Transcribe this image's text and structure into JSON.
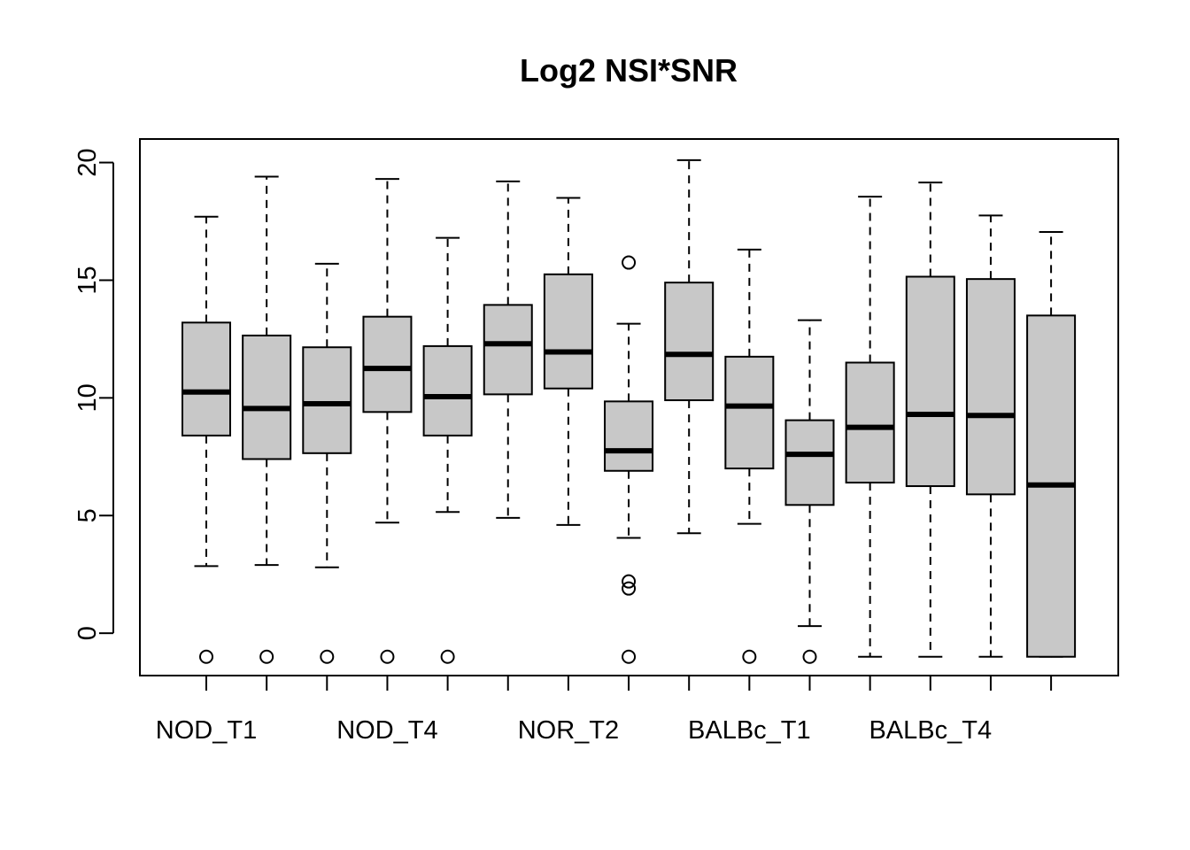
{
  "chart_data": {
    "type": "boxplot",
    "title": "Log2 NSI*SNR",
    "xlabel": "",
    "ylabel": "",
    "ylim": [
      -1.8,
      21.0
    ],
    "yticks": [
      0,
      5,
      10,
      15,
      20
    ],
    "grid": false,
    "legend": "none",
    "box_fill": "#c8c8c8",
    "xtick_labels": [
      {
        "box": 1,
        "label": "NOD_T1"
      },
      {
        "box": 4,
        "label": "NOD_T4"
      },
      {
        "box": 7,
        "label": "NOR_T2"
      },
      {
        "box": 10,
        "label": "BALBc_T1"
      },
      {
        "box": 13,
        "label": "BALBc_T4"
      }
    ],
    "boxes": [
      {
        "min": 2.85,
        "q1": 8.4,
        "median": 10.25,
        "q3": 13.2,
        "max": 17.7,
        "outliers": [
          -1.0
        ]
      },
      {
        "min": 2.9,
        "q1": 7.4,
        "median": 9.55,
        "q3": 12.65,
        "max": 19.4,
        "outliers": [
          -1.0
        ]
      },
      {
        "min": 2.8,
        "q1": 7.65,
        "median": 9.75,
        "q3": 12.15,
        "max": 15.7,
        "outliers": [
          -1.0
        ]
      },
      {
        "min": 4.7,
        "q1": 9.4,
        "median": 11.25,
        "q3": 13.45,
        "max": 19.3,
        "outliers": [
          -1.0
        ]
      },
      {
        "min": 5.15,
        "q1": 8.4,
        "median": 10.05,
        "q3": 12.2,
        "max": 16.8,
        "outliers": [
          -1.0
        ]
      },
      {
        "min": 4.9,
        "q1": 10.15,
        "median": 12.3,
        "q3": 13.95,
        "max": 19.2,
        "outliers": []
      },
      {
        "min": 4.6,
        "q1": 10.4,
        "median": 11.95,
        "q3": 15.25,
        "max": 18.5,
        "outliers": []
      },
      {
        "min": 4.05,
        "q1": 6.9,
        "median": 7.75,
        "q3": 9.85,
        "max": 13.15,
        "outliers": [
          15.75,
          2.2,
          1.9,
          -1.0
        ]
      },
      {
        "min": 4.25,
        "q1": 9.9,
        "median": 11.85,
        "q3": 14.9,
        "max": 20.1,
        "outliers": []
      },
      {
        "min": 4.65,
        "q1": 7.0,
        "median": 9.65,
        "q3": 11.75,
        "max": 16.3,
        "outliers": [
          -1.0
        ]
      },
      {
        "min": 0.3,
        "q1": 5.45,
        "median": 7.6,
        "q3": 9.05,
        "max": 13.3,
        "outliers": [
          -1.0
        ]
      },
      {
        "min": -1.0,
        "q1": 6.4,
        "median": 8.75,
        "q3": 11.5,
        "max": 18.55,
        "outliers": []
      },
      {
        "min": -1.0,
        "q1": 6.25,
        "median": 9.3,
        "q3": 15.15,
        "max": 19.15,
        "outliers": []
      },
      {
        "min": -1.0,
        "q1": 5.9,
        "median": 9.25,
        "q3": 15.05,
        "max": 17.75,
        "outliers": []
      },
      {
        "min": -1.0,
        "q1": -1.0,
        "median": 6.3,
        "q3": 13.5,
        "max": 17.05,
        "outliers": []
      }
    ]
  }
}
